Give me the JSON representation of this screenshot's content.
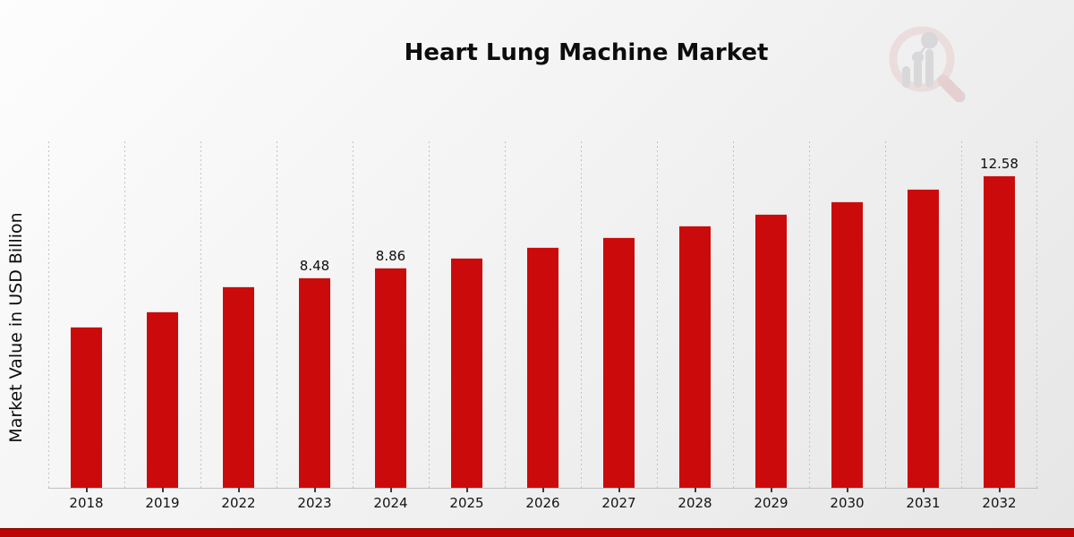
{
  "page": {
    "title": "Heart Lung Machine Market"
  },
  "chart_data": {
    "type": "bar",
    "title": "Heart Lung Machine Market",
    "xlabel": "",
    "ylabel": "Market Value in USD Billion",
    "categories": [
      "2018",
      "2019",
      "2022",
      "2023",
      "2024",
      "2025",
      "2026",
      "2027",
      "2028",
      "2029",
      "2030",
      "2031",
      "2032"
    ],
    "values": [
      6.5,
      7.1,
      8.1,
      8.48,
      8.86,
      9.26,
      9.68,
      10.11,
      10.57,
      11.04,
      11.54,
      12.05,
      12.58
    ],
    "bar_labels": [
      "",
      "",
      "",
      "8.48",
      "8.86",
      "",
      "",
      "",
      "",
      "",
      "",
      "",
      "12.58"
    ],
    "ylim": [
      0,
      13.95
    ],
    "grid": "vertical-dashed-only",
    "legend": "none",
    "bar_color": "#cb0b0b",
    "footer_band_color": "#bd0404",
    "gridline_color": "#c3c3c3"
  },
  "logo": {
    "name": "magnifier-bar-chart-watermark",
    "ring_color": "#e8cfce",
    "bars_color": "#c6c6ca",
    "handle_color": "#ddb9b9"
  }
}
